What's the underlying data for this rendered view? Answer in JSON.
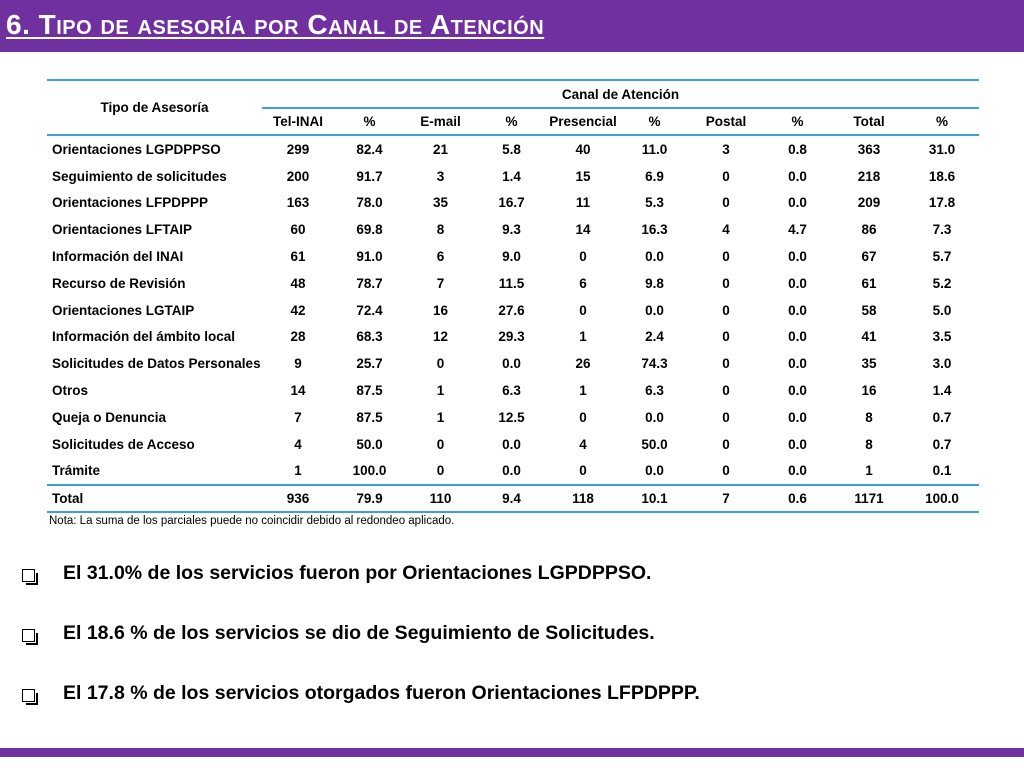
{
  "slide": {
    "title": "6. Tipo de asesoría por Canal de Atención",
    "colors": {
      "accent": "#7030a0",
      "rule": "#3aa0dc"
    }
  },
  "table": {
    "row_header": "Tipo de Asesoría",
    "group_header": "Canal de Atención",
    "columns": [
      "Tel-INAI",
      "%",
      "E-mail",
      "%",
      "Presencial",
      "%",
      "Postal",
      "%",
      "Total",
      "%"
    ],
    "rows": [
      {
        "label": "Orientaciones LGPDPPSO",
        "cells": [
          "299",
          "82.4",
          "21",
          "5.8",
          "40",
          "11.0",
          "3",
          "0.8",
          "363",
          "31.0"
        ]
      },
      {
        "label": "Seguimiento de solicitudes",
        "cells": [
          "200",
          "91.7",
          "3",
          "1.4",
          "15",
          "6.9",
          "0",
          "0.0",
          "218",
          "18.6"
        ]
      },
      {
        "label": "Orientaciones LFPDPPP",
        "cells": [
          "163",
          "78.0",
          "35",
          "16.7",
          "11",
          "5.3",
          "0",
          "0.0",
          "209",
          "17.8"
        ]
      },
      {
        "label": "Orientaciones LFTAIP",
        "cells": [
          "60",
          "69.8",
          "8",
          "9.3",
          "14",
          "16.3",
          "4",
          "4.7",
          "86",
          "7.3"
        ]
      },
      {
        "label": "Información del INAI",
        "cells": [
          "61",
          "91.0",
          "6",
          "9.0",
          "0",
          "0.0",
          "0",
          "0.0",
          "67",
          "5.7"
        ]
      },
      {
        "label": "Recurso de Revisión",
        "cells": [
          "48",
          "78.7",
          "7",
          "11.5",
          "6",
          "9.8",
          "0",
          "0.0",
          "61",
          "5.2"
        ]
      },
      {
        "label": "Orientaciones LGTAIP",
        "cells": [
          "42",
          "72.4",
          "16",
          "27.6",
          "0",
          "0.0",
          "0",
          "0.0",
          "58",
          "5.0"
        ]
      },
      {
        "label": "Información del ámbito local",
        "cells": [
          "28",
          "68.3",
          "12",
          "29.3",
          "1",
          "2.4",
          "0",
          "0.0",
          "41",
          "3.5"
        ]
      },
      {
        "label": "Solicitudes de Datos Personales",
        "cells": [
          "9",
          "25.7",
          "0",
          "0.0",
          "26",
          "74.3",
          "0",
          "0.0",
          "35",
          "3.0"
        ]
      },
      {
        "label": "Otros",
        "cells": [
          "14",
          "87.5",
          "1",
          "6.3",
          "1",
          "6.3",
          "0",
          "0.0",
          "16",
          "1.4"
        ]
      },
      {
        "label": "Queja o Denuncia",
        "cells": [
          "7",
          "87.5",
          "1",
          "12.5",
          "0",
          "0.0",
          "0",
          "0.0",
          "8",
          "0.7"
        ]
      },
      {
        "label": "Solicitudes de Acceso",
        "cells": [
          "4",
          "50.0",
          "0",
          "0.0",
          "4",
          "50.0",
          "0",
          "0.0",
          "8",
          "0.7"
        ]
      },
      {
        "label": "Trámite",
        "cells": [
          "1",
          "100.0",
          "0",
          "0.0",
          "0",
          "0.0",
          "0",
          "0.0",
          "1",
          "0.1"
        ]
      }
    ],
    "total": {
      "label": "Total",
      "cells": [
        "936",
        "79.9",
        "110",
        "9.4",
        "118",
        "10.1",
        "7",
        "0.6",
        "1171",
        "100.0"
      ]
    }
  },
  "note": "Nota: La suma de los parciales puede no coincidir debido al redondeo aplicado.",
  "bullets": [
    "El 31.0% de los servicios fueron por Orientaciones LGPDPPSO.",
    "El 18.6 % de los servicios se dio de Seguimiento de Solicitudes.",
    "El 17.8 % de los servicios otorgados fueron Orientaciones LFPDPPP."
  ]
}
